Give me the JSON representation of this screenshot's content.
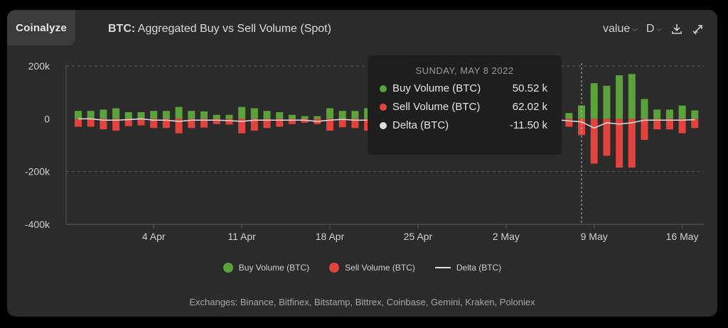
{
  "brand": "Coinalyze",
  "title": {
    "prefix": "BTC:",
    "text": " Aggregated Buy vs Sell Volume (Spot)"
  },
  "toolbar": {
    "value_label": "value",
    "period_label": "D",
    "download_icon": "download-icon",
    "expand_icon": "expand-icon"
  },
  "colors": {
    "buy": "#5aa33a",
    "sell": "#e2443d",
    "delta": "#e0e0e0",
    "grid": "#5a5a5a",
    "axis_text": "#d0d0d0"
  },
  "chart_data": {
    "type": "bar",
    "x": [
      "Mar 29",
      "Mar 30",
      "Mar 31",
      "Apr 1",
      "Apr 2",
      "Apr 3",
      "Apr 4",
      "Apr 5",
      "Apr 6",
      "Apr 7",
      "Apr 8",
      "Apr 9",
      "Apr 10",
      "Apr 11",
      "Apr 12",
      "Apr 13",
      "Apr 14",
      "Apr 15",
      "Apr 16",
      "Apr 17",
      "Apr 18",
      "Apr 19",
      "Apr 20",
      "Apr 21",
      "Apr 22",
      "Apr 23",
      "Apr 24",
      "Apr 25",
      "Apr 26",
      "Apr 27",
      "Apr 28",
      "Apr 29",
      "Apr 30",
      "May 1",
      "May 2",
      "May 3",
      "May 4",
      "May 5",
      "May 6",
      "May 7",
      "May 8",
      "May 9",
      "May 10",
      "May 11",
      "May 12",
      "May 13",
      "May 14",
      "May 15",
      "May 16",
      "May 17"
    ],
    "xticks": [
      "4 Apr",
      "11 Apr",
      "18 Apr",
      "25 Apr",
      "2 May",
      "9 May",
      "16 May"
    ],
    "series": [
      {
        "name": "Buy Volume (BTC)",
        "values": [
          30,
          30,
          35,
          40,
          25,
          25,
          30,
          30,
          45,
          30,
          28,
          15,
          15,
          45,
          40,
          30,
          25,
          15,
          10,
          10,
          40,
          30,
          30,
          40,
          40,
          45,
          40,
          40,
          35,
          35,
          30,
          30,
          30,
          30,
          30,
          30,
          25,
          25,
          22,
          22,
          50.52,
          135,
          125,
          165,
          170,
          75,
          35,
          35,
          50,
          32
        ]
      },
      {
        "name": "Sell Volume (BTC)",
        "values": [
          -30,
          -30,
          -40,
          -45,
          -28,
          -25,
          -35,
          -35,
          -55,
          -35,
          -33,
          -20,
          -22,
          -55,
          -45,
          -35,
          -30,
          -20,
          -15,
          -20,
          -45,
          -32,
          -35,
          -45,
          -45,
          -50,
          -45,
          -45,
          -40,
          -40,
          -35,
          -35,
          -35,
          -35,
          -35,
          -35,
          -30,
          -30,
          -25,
          -30,
          -62.02,
          -170,
          -140,
          -185,
          -185,
          -80,
          -40,
          -40,
          -55,
          -35
        ]
      },
      {
        "name": "Delta (BTC)",
        "values": [
          0,
          0,
          -5,
          -5,
          -3,
          0,
          -5,
          -5,
          -10,
          -5,
          -5,
          -5,
          -7,
          -10,
          -5,
          -5,
          -5,
          -5,
          -5,
          -10,
          -5,
          -2,
          -5,
          -5,
          -5,
          -5,
          -5,
          -5,
          -5,
          -5,
          -5,
          -5,
          -5,
          -5,
          -5,
          -5,
          -5,
          -5,
          -3,
          -8,
          -11.5,
          -35,
          -15,
          -20,
          -15,
          -5,
          -5,
          -5,
          -5,
          -3
        ]
      }
    ],
    "yticks": [
      "200k",
      "0",
      "-200k",
      "-400k"
    ],
    "ylim": [
      -400000,
      200000
    ],
    "grid": true,
    "legend_position": "bottom",
    "crosshair_x": "May 8"
  },
  "legend": {
    "buy": "Buy Volume (BTC)",
    "sell": "Sell Volume (BTC)",
    "delta": "Delta (BTC)"
  },
  "tooltip": {
    "date": "SUNDAY, MAY 8 2022",
    "rows": [
      {
        "label": "Buy Volume (BTC)",
        "value": "50.52 k"
      },
      {
        "label": "Sell Volume (BTC)",
        "value": "62.02 k"
      },
      {
        "label": "Delta (BTC)",
        "value": "-11.50 k"
      }
    ]
  },
  "footer": "Exchanges: Binance, Bitfinex, Bitstamp, Bittrex, Coinbase, Gemini, Kraken, Poloniex"
}
